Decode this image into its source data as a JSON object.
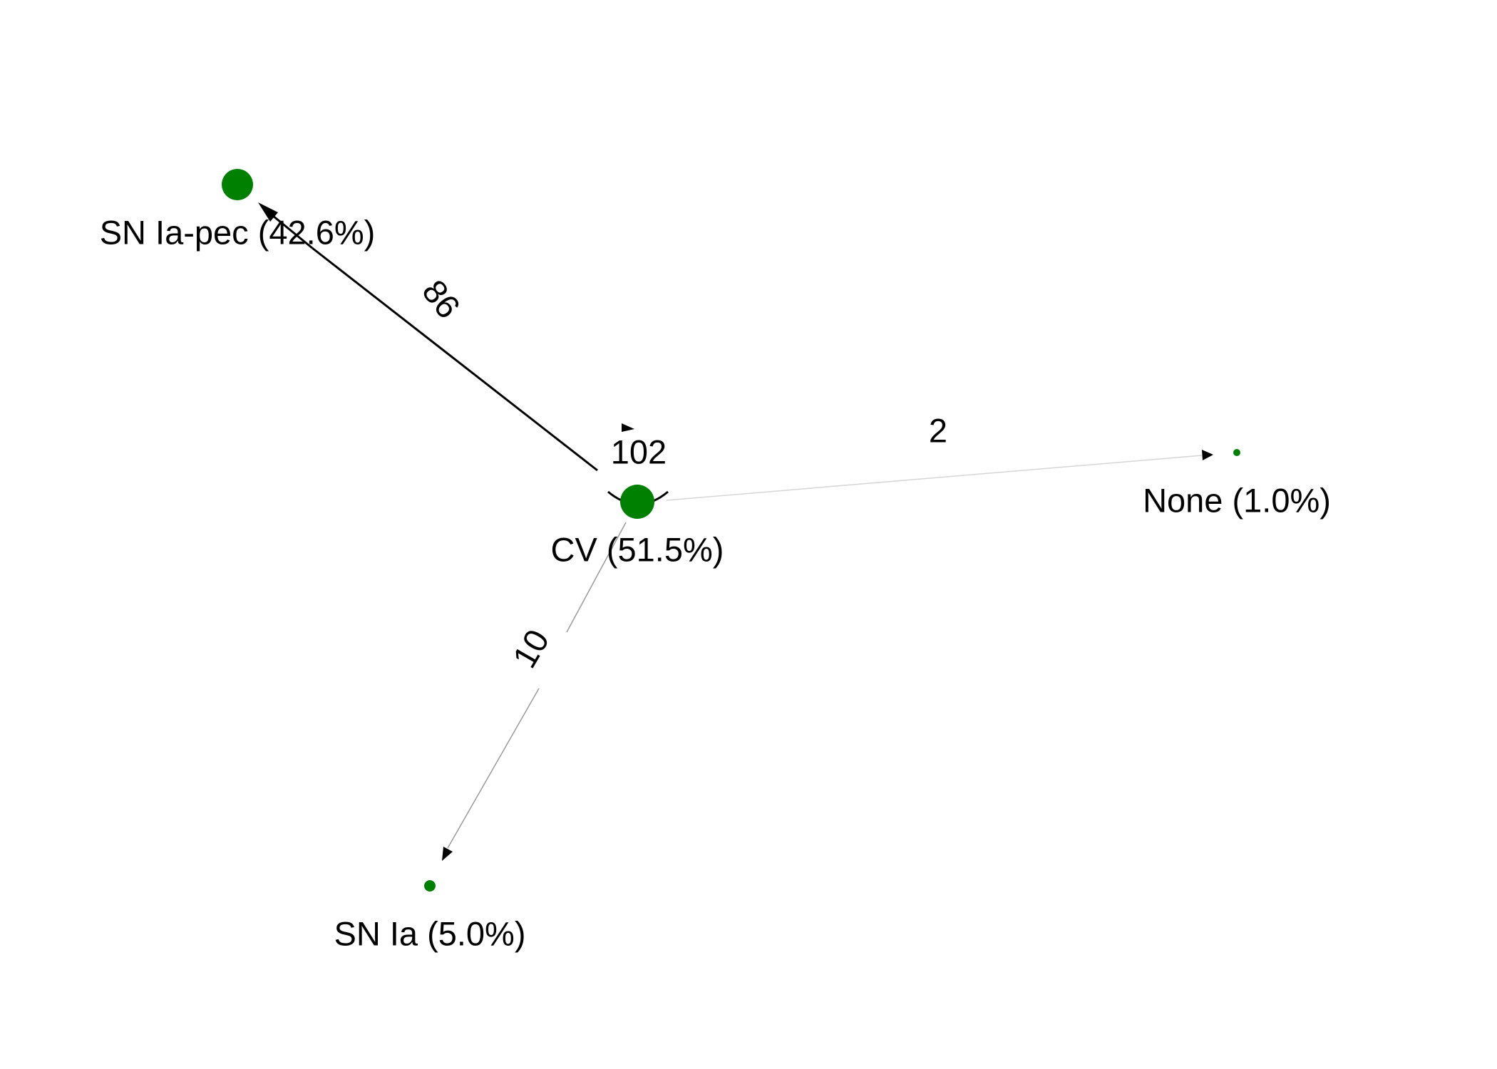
{
  "diagram": {
    "type": "directed-graph",
    "node_color": "#008000",
    "edge_color": "#000000",
    "nodes": [
      {
        "id": "cv",
        "label": "CV (51.5%)",
        "share_percent": 51.5
      },
      {
        "id": "sn-ia-pec",
        "label": "SN Ia-pec (42.6%)",
        "share_percent": 42.6
      },
      {
        "id": "none",
        "label": "None (1.0%)",
        "share_percent": 1.0
      },
      {
        "id": "sn-ia",
        "label": "SN Ia (5.0%)",
        "share_percent": 5.0
      }
    ],
    "edges": [
      {
        "id": "cv-cv",
        "from": "cv",
        "to": "cv",
        "label": "102",
        "count": 102
      },
      {
        "id": "cv-sn-ia-pec",
        "from": "cv",
        "to": "sn-ia-pec",
        "label": "86",
        "count": 86
      },
      {
        "id": "cv-none",
        "from": "cv",
        "to": "none",
        "label": "2",
        "count": 2
      },
      {
        "id": "cv-sn-ia",
        "from": "cv",
        "to": "sn-ia",
        "label": "10",
        "count": 10
      }
    ]
  }
}
